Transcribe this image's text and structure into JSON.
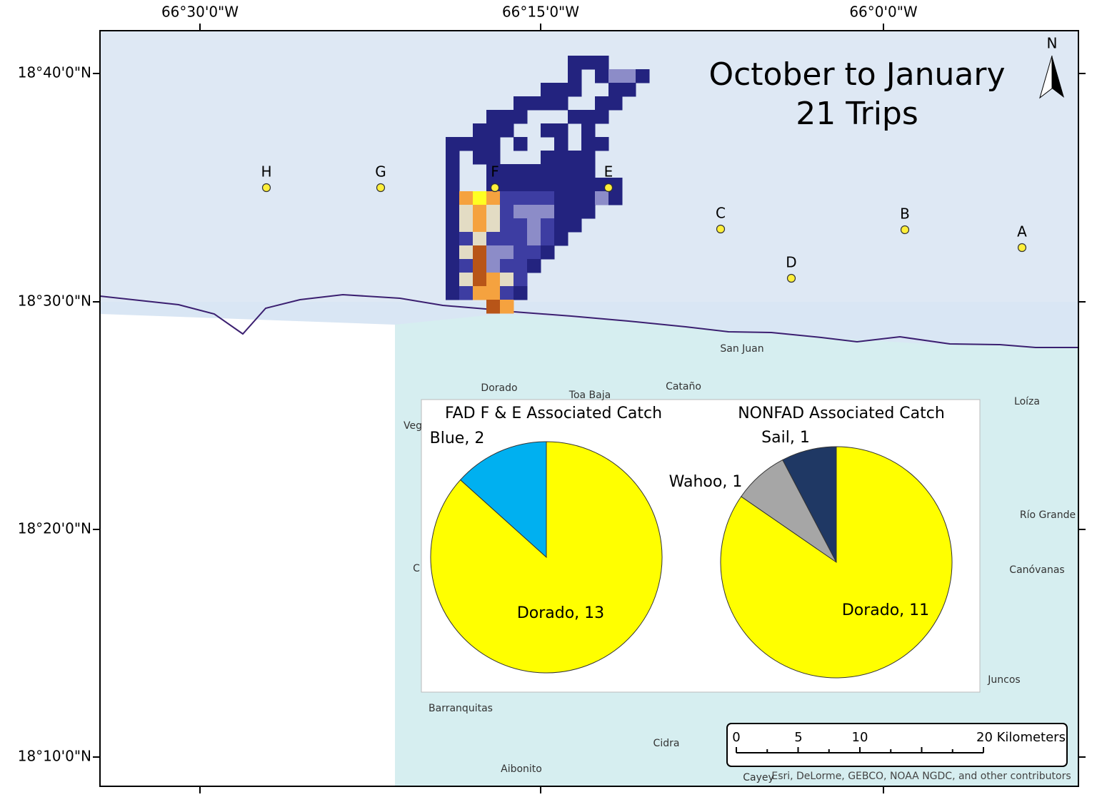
{
  "map": {
    "title": [
      "October to January",
      "21 Trips"
    ],
    "north": "N",
    "lon_labels": [
      "66°30'0\"W",
      "66°15'0\"W",
      "66°0'0\"W"
    ],
    "lat_labels": [
      "18°40'0\"N",
      "18°30'0\"N",
      "18°20'0\"N",
      "18°10'0\"N"
    ],
    "points": [
      "H",
      "G",
      "F",
      "E",
      "C",
      "B",
      "A",
      "D"
    ],
    "places": [
      "San Juan",
      "Dorado",
      "Toa Baja",
      "Cataño",
      "Loíza",
      "Río Grande",
      "Canóvanas",
      "Juncos",
      "Barranquitas",
      "Cidra",
      "Aibonito",
      "Cayey",
      "Veg",
      "C"
    ],
    "scale_labels": [
      "0",
      "5",
      "10",
      "20 Kilometers"
    ],
    "attribution": "Esri, DeLorme, GEBCO, NOAA NGDC, and other contributors"
  },
  "chart_data": [
    {
      "type": "pie",
      "title": "FAD F & E Associated Catch",
      "values": [
        2,
        13
      ],
      "value_labels": [
        "Blue, 2",
        "Dorado, 13"
      ],
      "colors": [
        "#00b0f0",
        "#ffff00"
      ]
    },
    {
      "type": "pie",
      "title": "NONFAD Associated Catch",
      "values": [
        1,
        1,
        11
      ],
      "value_labels": [
        "Sail, 1",
        "Wahoo, 1",
        "Dorado, 11"
      ],
      "colors": [
        "#1f3864",
        "#a6a6a6",
        "#ffff00"
      ]
    }
  ]
}
